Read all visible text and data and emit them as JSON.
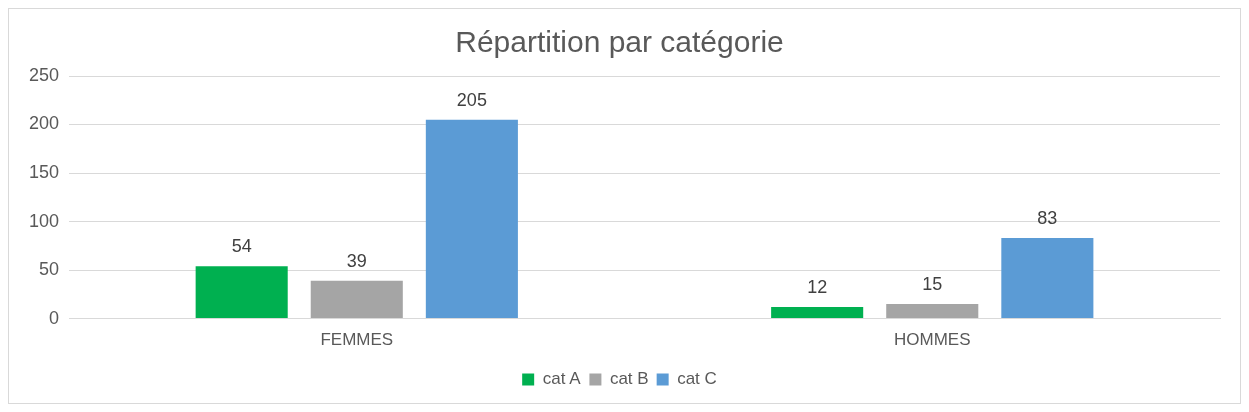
{
  "chart_data": {
    "type": "bar",
    "title": "Répartition par catégorie",
    "categories": [
      "FEMMES",
      "HOMMES"
    ],
    "series": [
      {
        "name": "cat A",
        "color": "#00b050",
        "values": [
          54,
          12
        ]
      },
      {
        "name": "cat B",
        "color": "#a5a5a5",
        "values": [
          39,
          15
        ]
      },
      {
        "name": "cat C",
        "color": "#5b9bd5",
        "values": [
          205,
          83
        ]
      }
    ],
    "ylim": [
      0,
      250
    ],
    "yticks": [
      0,
      50,
      100,
      150,
      200,
      250
    ],
    "grid": "y",
    "legend": "bottom",
    "data_labels": true
  }
}
